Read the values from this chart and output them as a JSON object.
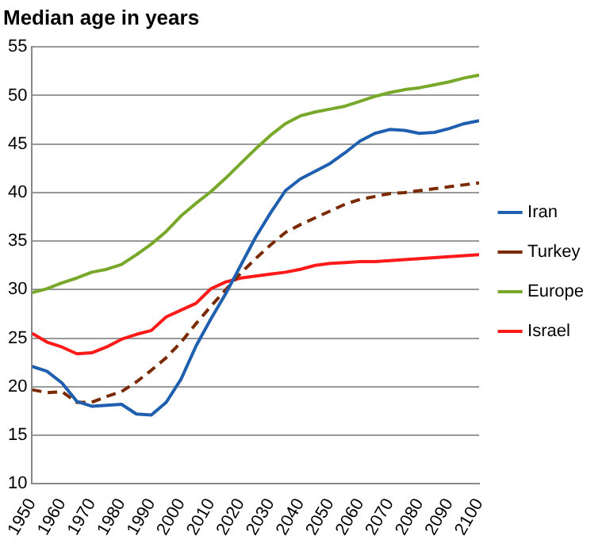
{
  "chart_data": {
    "type": "line",
    "title": "Median age in years",
    "x": [
      1950,
      1955,
      1960,
      1965,
      1970,
      1975,
      1980,
      1985,
      1990,
      1995,
      2000,
      2005,
      2010,
      2015,
      2020,
      2025,
      2030,
      2035,
      2040,
      2045,
      2050,
      2055,
      2060,
      2065,
      2070,
      2075,
      2080,
      2085,
      2090,
      2095,
      2100
    ],
    "xlim": [
      1950,
      2100
    ],
    "xticks": [
      1950,
      1960,
      1970,
      1980,
      1990,
      2000,
      2010,
      2020,
      2030,
      2040,
      2050,
      2060,
      2070,
      2080,
      2090,
      2100
    ],
    "ylim": [
      10,
      55
    ],
    "yticks": [
      10,
      15,
      20,
      25,
      30,
      35,
      40,
      45,
      50,
      55
    ],
    "grid": "y",
    "legend": "right",
    "marker": "none",
    "line_style": "solid",
    "series": [
      {
        "name": "Iran",
        "color": "#1f5fb0",
        "values": [
          22.1,
          21.6,
          20.4,
          18.5,
          18.0,
          18.1,
          18.2,
          17.2,
          17.1,
          18.4,
          20.8,
          24.2,
          27.0,
          29.6,
          32.5,
          35.4,
          37.9,
          40.2,
          41.4,
          42.2,
          43.0,
          44.1,
          45.3,
          46.1,
          46.5,
          46.4,
          46.1,
          46.2,
          46.6,
          47.1,
          47.4
        ]
      },
      {
        "name": "Turkey",
        "color": "#7b2a00",
        "line_style": "dashed",
        "values": [
          19.7,
          19.4,
          19.5,
          18.4,
          18.4,
          19.0,
          19.5,
          20.5,
          21.7,
          23.0,
          24.6,
          26.5,
          28.3,
          30.0,
          31.7,
          33.2,
          34.6,
          35.9,
          36.7,
          37.4,
          38.1,
          38.8,
          39.3,
          39.6,
          39.9,
          40.0,
          40.2,
          40.4,
          40.6,
          40.8,
          41.0
        ]
      },
      {
        "name": "Europe",
        "color": "#77a82a",
        "values": [
          29.7,
          30.1,
          30.7,
          31.2,
          31.8,
          32.1,
          32.6,
          33.6,
          34.7,
          36.0,
          37.6,
          38.9,
          40.1,
          41.5,
          43.0,
          44.5,
          45.9,
          47.1,
          47.9,
          48.3,
          48.6,
          48.9,
          49.4,
          49.9,
          50.3,
          50.6,
          50.8,
          51.1,
          51.4,
          51.8,
          52.1
        ]
      },
      {
        "name": "Israel",
        "color": "#ff1a1a",
        "values": [
          25.5,
          24.6,
          24.1,
          23.4,
          23.5,
          24.1,
          24.9,
          25.4,
          25.8,
          27.2,
          27.9,
          28.6,
          30.1,
          30.8,
          31.2,
          31.4,
          31.6,
          31.8,
          32.1,
          32.5,
          32.7,
          32.8,
          32.9,
          32.9,
          33.0,
          33.1,
          33.2,
          33.3,
          33.4,
          33.5,
          33.6
        ]
      }
    ]
  }
}
